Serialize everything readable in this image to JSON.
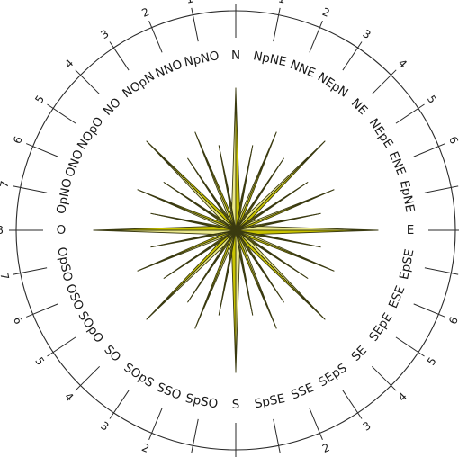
{
  "points": [
    {
      "label": "N",
      "number": "0"
    },
    {
      "label": "NpNE",
      "number": "1"
    },
    {
      "label": "NNE",
      "number": "2"
    },
    {
      "label": "NEpN",
      "number": "3"
    },
    {
      "label": "NE",
      "number": "4"
    },
    {
      "label": "NEpE",
      "number": "5"
    },
    {
      "label": "ENE",
      "number": "6"
    },
    {
      "label": "EpNE",
      "number": "7"
    },
    {
      "label": "E",
      "number": "8"
    },
    {
      "label": "EpSE",
      "number": "7"
    },
    {
      "label": "ESE",
      "number": "6"
    },
    {
      "label": "SEpE",
      "number": "5"
    },
    {
      "label": "SE",
      "number": "4"
    },
    {
      "label": "SEpS",
      "number": "3"
    },
    {
      "label": "SSE",
      "number": "2"
    },
    {
      "label": "SpSE",
      "number": "1"
    },
    {
      "label": "S",
      "number": "0"
    },
    {
      "label": "SpSO",
      "number": "1"
    },
    {
      "label": "SSO",
      "number": "2"
    },
    {
      "label": "SOpS",
      "number": "3"
    },
    {
      "label": "SO",
      "number": "4"
    },
    {
      "label": "SOpO",
      "number": "5"
    },
    {
      "label": "OSO",
      "number": "6"
    },
    {
      "label": "OpSO",
      "number": "7"
    },
    {
      "label": "O",
      "number": "8"
    },
    {
      "label": "OpNO",
      "number": "7"
    },
    {
      "label": "ONO",
      "number": "6"
    },
    {
      "label": "NOpO",
      "number": "5"
    },
    {
      "label": "NO",
      "number": "4"
    },
    {
      "label": "NOpN",
      "number": "3"
    },
    {
      "label": "NNO",
      "number": "2"
    },
    {
      "label": "NpNO",
      "number": "1"
    }
  ],
  "colors": {
    "dark": "#c9c400",
    "light": "#ecea8c",
    "ring": "#2a2a2a"
  }
}
